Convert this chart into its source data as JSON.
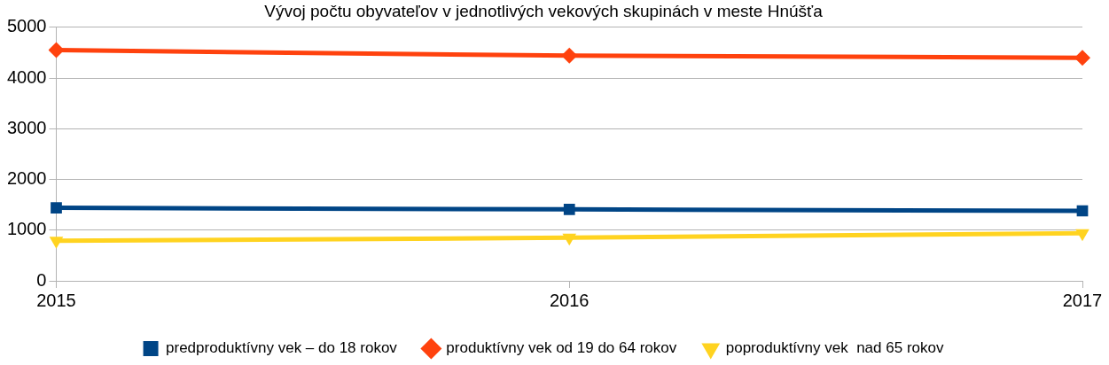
{
  "chart_data": {
    "type": "line",
    "title": "Vývoj počtu obyvateľov v jednotlivých vekových skupinách v meste Hnúšťa",
    "categories": [
      "2015",
      "2016",
      "2017"
    ],
    "series": [
      {
        "name": "predproduktívny vek – do 18 rokov",
        "color": "#004586",
        "marker": "square",
        "values": [
          1440,
          1410,
          1380
        ]
      },
      {
        "name": "produktívny vek od 19 do 64 rokov",
        "color": "#ff420e",
        "marker": "diamond",
        "values": [
          4550,
          4440,
          4400
        ]
      },
      {
        "name": "poproduktívny vek  nad 65 rokov",
        "color": "#ffd320",
        "marker": "triangle",
        "values": [
          790,
          850,
          940
        ]
      }
    ],
    "ylim": [
      0,
      5000
    ],
    "yticks": [
      0,
      1000,
      2000,
      3000,
      4000,
      5000
    ],
    "grid": "y",
    "legend": "bottom"
  }
}
